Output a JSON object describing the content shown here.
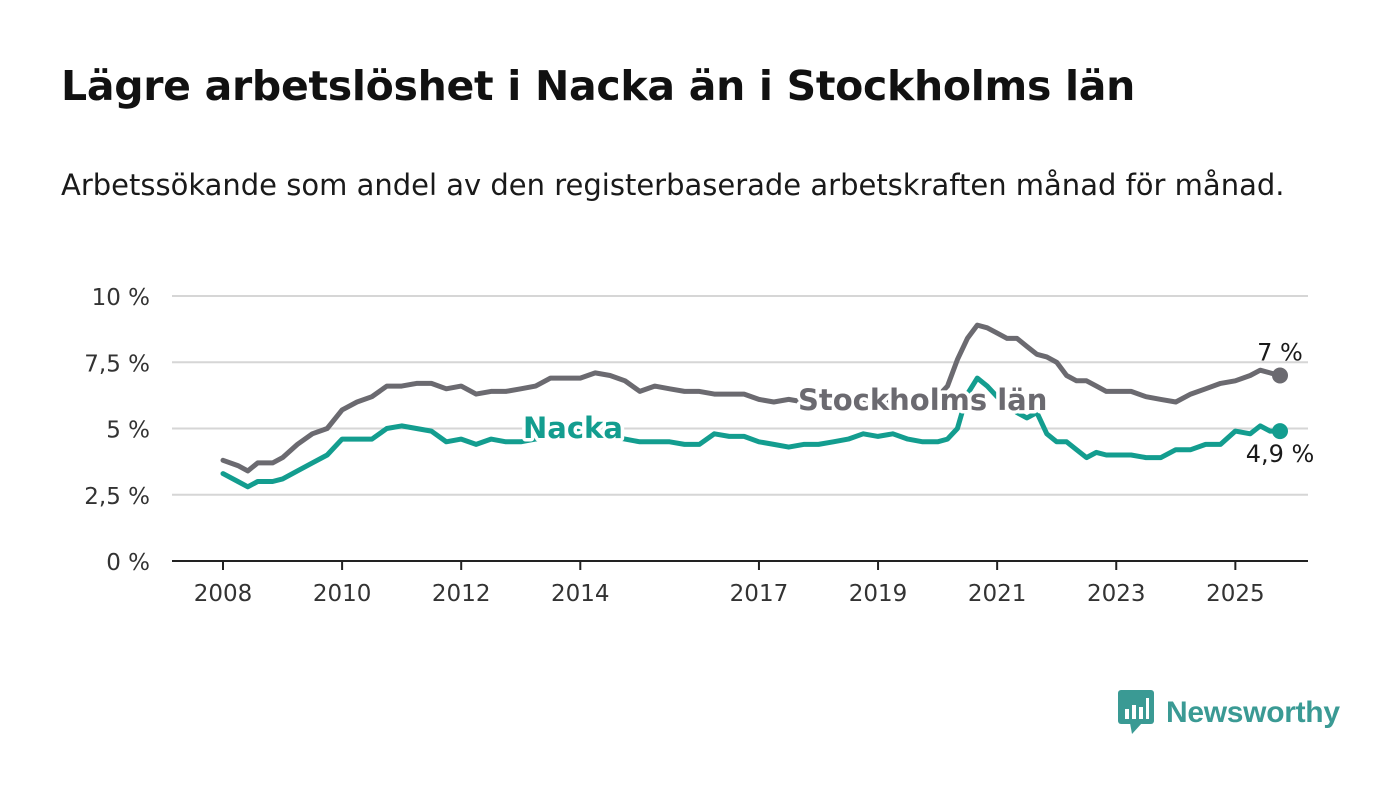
{
  "title": "Lägre arbetslöshet i Nacka än i Stockholms län",
  "subtitle": "Arbetssökande som andel av den registerbaserade arbetskraften månad för månad.",
  "brand": {
    "name": "Newsworthy",
    "color": "#3a9a94"
  },
  "chart_data": {
    "type": "line",
    "y_ticks": [
      "0 %",
      "2,5 %",
      "5 %",
      "7,5 %",
      "10 %"
    ],
    "x_ticks": [
      "2008",
      "2010",
      "2012",
      "2014",
      "2017",
      "2019",
      "2021",
      "2023",
      "2025"
    ],
    "ylim": [
      0,
      10
    ],
    "grid": true,
    "series": [
      {
        "name": "Stockholms län",
        "color": "#6b6a70",
        "end_label": "7 %",
        "points": [
          [
            "2008-01",
            3.8
          ],
          [
            "2008-04",
            3.6
          ],
          [
            "2008-06",
            3.4
          ],
          [
            "2008-08",
            3.7
          ],
          [
            "2008-11",
            3.7
          ],
          [
            "2009-01",
            3.9
          ],
          [
            "2009-04",
            4.4
          ],
          [
            "2009-07",
            4.8
          ],
          [
            "2009-10",
            5.0
          ],
          [
            "2010-01",
            5.7
          ],
          [
            "2010-04",
            6.0
          ],
          [
            "2010-07",
            6.2
          ],
          [
            "2010-10",
            6.6
          ],
          [
            "2011-01",
            6.6
          ],
          [
            "2011-04",
            6.7
          ],
          [
            "2011-07",
            6.7
          ],
          [
            "2011-10",
            6.5
          ],
          [
            "2012-01",
            6.6
          ],
          [
            "2012-04",
            6.3
          ],
          [
            "2012-07",
            6.4
          ],
          [
            "2012-10",
            6.4
          ],
          [
            "2013-01",
            6.5
          ],
          [
            "2013-04",
            6.6
          ],
          [
            "2013-07",
            6.9
          ],
          [
            "2013-10",
            6.9
          ],
          [
            "2014-01",
            6.9
          ],
          [
            "2014-04",
            7.1
          ],
          [
            "2014-07",
            7.0
          ],
          [
            "2014-10",
            6.8
          ],
          [
            "2015-01",
            6.4
          ],
          [
            "2015-04",
            6.6
          ],
          [
            "2015-07",
            6.5
          ],
          [
            "2015-10",
            6.4
          ],
          [
            "2016-01",
            6.4
          ],
          [
            "2016-04",
            6.3
          ],
          [
            "2016-07",
            6.3
          ],
          [
            "2016-10",
            6.3
          ],
          [
            "2017-01",
            6.1
          ],
          [
            "2017-04",
            6.0
          ],
          [
            "2017-07",
            6.1
          ],
          [
            "2017-10",
            6.0
          ],
          [
            "2018-01",
            6.1
          ],
          [
            "2018-04",
            6.0
          ],
          [
            "2018-07",
            6.1
          ],
          [
            "2018-10",
            6.1
          ],
          [
            "2019-01",
            6.0
          ],
          [
            "2019-04",
            6.0
          ],
          [
            "2019-07",
            6.0
          ],
          [
            "2019-10",
            6.1
          ],
          [
            "2020-01",
            6.2
          ],
          [
            "2020-03",
            6.6
          ],
          [
            "2020-05",
            7.6
          ],
          [
            "2020-07",
            8.4
          ],
          [
            "2020-09",
            8.9
          ],
          [
            "2020-11",
            8.8
          ],
          [
            "2021-01",
            8.6
          ],
          [
            "2021-03",
            8.4
          ],
          [
            "2021-05",
            8.4
          ],
          [
            "2021-07",
            8.1
          ],
          [
            "2021-09",
            7.8
          ],
          [
            "2021-11",
            7.7
          ],
          [
            "2022-01",
            7.5
          ],
          [
            "2022-03",
            7.0
          ],
          [
            "2022-05",
            6.8
          ],
          [
            "2022-07",
            6.8
          ],
          [
            "2022-09",
            6.6
          ],
          [
            "2022-11",
            6.4
          ],
          [
            "2023-01",
            6.4
          ],
          [
            "2023-04",
            6.4
          ],
          [
            "2023-07",
            6.2
          ],
          [
            "2023-10",
            6.1
          ],
          [
            "2024-01",
            6.0
          ],
          [
            "2024-04",
            6.3
          ],
          [
            "2024-07",
            6.5
          ],
          [
            "2024-10",
            6.7
          ],
          [
            "2025-01",
            6.8
          ],
          [
            "2025-04",
            7.0
          ],
          [
            "2025-06",
            7.2
          ],
          [
            "2025-08",
            7.1
          ],
          [
            "2025-10",
            7.0
          ]
        ]
      },
      {
        "name": "Nacka",
        "color": "#139d8f",
        "end_label": "4,9 %",
        "points": [
          [
            "2008-01",
            3.3
          ],
          [
            "2008-04",
            3.0
          ],
          [
            "2008-06",
            2.8
          ],
          [
            "2008-08",
            3.0
          ],
          [
            "2008-11",
            3.0
          ],
          [
            "2009-01",
            3.1
          ],
          [
            "2009-04",
            3.4
          ],
          [
            "2009-07",
            3.7
          ],
          [
            "2009-10",
            4.0
          ],
          [
            "2010-01",
            4.6
          ],
          [
            "2010-04",
            4.6
          ],
          [
            "2010-07",
            4.6
          ],
          [
            "2010-10",
            5.0
          ],
          [
            "2011-01",
            5.1
          ],
          [
            "2011-04",
            5.0
          ],
          [
            "2011-07",
            4.9
          ],
          [
            "2011-10",
            4.5
          ],
          [
            "2012-01",
            4.6
          ],
          [
            "2012-04",
            4.4
          ],
          [
            "2012-07",
            4.6
          ],
          [
            "2012-10",
            4.5
          ],
          [
            "2013-01",
            4.5
          ],
          [
            "2013-04",
            4.6
          ],
          [
            "2013-07",
            4.8
          ],
          [
            "2013-10",
            4.9
          ],
          [
            "2014-01",
            4.9
          ],
          [
            "2014-04",
            4.8
          ],
          [
            "2014-07",
            4.7
          ],
          [
            "2014-10",
            4.6
          ],
          [
            "2015-01",
            4.5
          ],
          [
            "2015-04",
            4.5
          ],
          [
            "2015-07",
            4.5
          ],
          [
            "2015-10",
            4.4
          ],
          [
            "2016-01",
            4.4
          ],
          [
            "2016-04",
            4.8
          ],
          [
            "2016-07",
            4.7
          ],
          [
            "2016-10",
            4.7
          ],
          [
            "2017-01",
            4.5
          ],
          [
            "2017-04",
            4.4
          ],
          [
            "2017-07",
            4.3
          ],
          [
            "2017-10",
            4.4
          ],
          [
            "2018-01",
            4.4
          ],
          [
            "2018-04",
            4.5
          ],
          [
            "2018-07",
            4.6
          ],
          [
            "2018-10",
            4.8
          ],
          [
            "2019-01",
            4.7
          ],
          [
            "2019-04",
            4.8
          ],
          [
            "2019-07",
            4.6
          ],
          [
            "2019-10",
            4.5
          ],
          [
            "2020-01",
            4.5
          ],
          [
            "2020-03",
            4.6
          ],
          [
            "2020-05",
            5.0
          ],
          [
            "2020-07",
            6.3
          ],
          [
            "2020-09",
            6.9
          ],
          [
            "2020-11",
            6.6
          ],
          [
            "2021-01",
            6.2
          ],
          [
            "2021-03",
            5.9
          ],
          [
            "2021-05",
            5.6
          ],
          [
            "2021-07",
            5.4
          ],
          [
            "2021-09",
            5.6
          ],
          [
            "2021-11",
            4.8
          ],
          [
            "2022-01",
            4.5
          ],
          [
            "2022-03",
            4.5
          ],
          [
            "2022-05",
            4.2
          ],
          [
            "2022-07",
            3.9
          ],
          [
            "2022-09",
            4.1
          ],
          [
            "2022-11",
            4.0
          ],
          [
            "2023-01",
            4.0
          ],
          [
            "2023-04",
            4.0
          ],
          [
            "2023-07",
            3.9
          ],
          [
            "2023-10",
            3.9
          ],
          [
            "2024-01",
            4.2
          ],
          [
            "2024-04",
            4.2
          ],
          [
            "2024-07",
            4.4
          ],
          [
            "2024-10",
            4.4
          ],
          [
            "2025-01",
            4.9
          ],
          [
            "2025-04",
            4.8
          ],
          [
            "2025-06",
            5.1
          ],
          [
            "2025-08",
            4.9
          ],
          [
            "2025-10",
            4.9
          ]
        ]
      }
    ]
  }
}
